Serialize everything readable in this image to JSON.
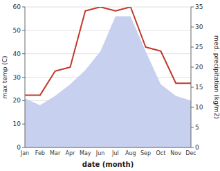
{
  "chart_data": {
    "type": "line",
    "categories": [
      "Jan",
      "Feb",
      "Mar",
      "Apr",
      "May",
      "Jun",
      "Jul",
      "Aug",
      "Sep",
      "Oct",
      "Nov",
      "Dec"
    ],
    "series": [
      {
        "type": "area",
        "color": "#c8d0f0",
        "values": [
          21,
          18,
          22,
          27,
          33,
          41,
          56,
          56,
          41,
          27,
          22,
          20
        ]
      },
      {
        "type": "line",
        "color": "#c0392b",
        "axis": "y2",
        "values": [
          13,
          13,
          19,
          20,
          34,
          35,
          34,
          35,
          25,
          24,
          16,
          16
        ]
      }
    ],
    "xlabel": "date (month)",
    "ylabel": "max temp (C)",
    "y2label": "med. precipitation (kg/m2)",
    "ylim": [
      0,
      60
    ],
    "yticks": [
      0,
      10,
      20,
      30,
      40,
      50,
      60
    ],
    "y2lim": [
      0,
      35
    ],
    "y2ticks": [
      0,
      5,
      10,
      15,
      20,
      25,
      30,
      35
    ],
    "grid": true
  }
}
